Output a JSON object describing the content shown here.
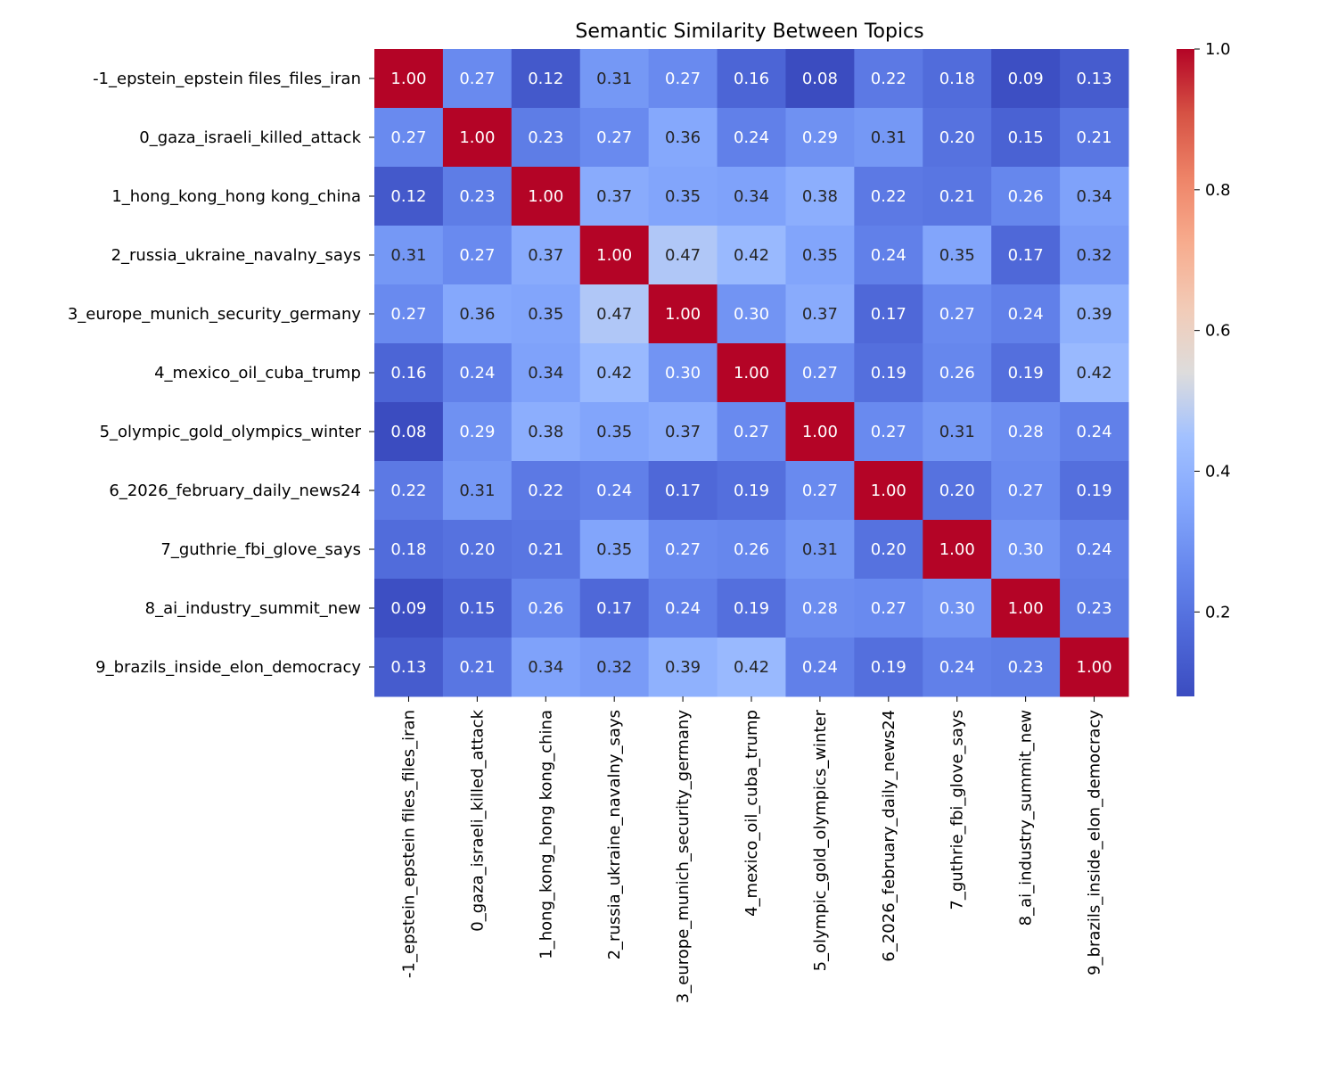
{
  "chart_data": {
    "type": "heatmap",
    "title": "Semantic Similarity Between Topics",
    "xlabel": "",
    "ylabel": "",
    "labels": [
      "-1_epstein_epstein files_files_iran",
      "0_gaza_israeli_killed_attack",
      "1_hong_kong_hong kong_china",
      "2_russia_ukraine_navalny_says",
      "3_europe_munich_security_germany",
      "4_mexico_oil_cuba_trump",
      "5_olympic_gold_olympics_winter",
      "6_2026_february_daily_news24",
      "7_guthrie_fbi_glove_says",
      "8_ai_industry_summit_new",
      "9_brazils_inside_elon_democracy"
    ],
    "values": [
      [
        1.0,
        0.27,
        0.12,
        0.31,
        0.27,
        0.16,
        0.08,
        0.22,
        0.18,
        0.09,
        0.13
      ],
      [
        0.27,
        1.0,
        0.23,
        0.27,
        0.36,
        0.24,
        0.29,
        0.31,
        0.2,
        0.15,
        0.21
      ],
      [
        0.12,
        0.23,
        1.0,
        0.37,
        0.35,
        0.34,
        0.38,
        0.22,
        0.21,
        0.26,
        0.34
      ],
      [
        0.31,
        0.27,
        0.37,
        1.0,
        0.47,
        0.42,
        0.35,
        0.24,
        0.35,
        0.17,
        0.32
      ],
      [
        0.27,
        0.36,
        0.35,
        0.47,
        1.0,
        0.3,
        0.37,
        0.17,
        0.27,
        0.24,
        0.39
      ],
      [
        0.16,
        0.24,
        0.34,
        0.42,
        0.3,
        1.0,
        0.27,
        0.19,
        0.26,
        0.19,
        0.42
      ],
      [
        0.08,
        0.29,
        0.38,
        0.35,
        0.37,
        0.27,
        1.0,
        0.27,
        0.31,
        0.28,
        0.24
      ],
      [
        0.22,
        0.31,
        0.22,
        0.24,
        0.17,
        0.19,
        0.27,
        1.0,
        0.2,
        0.27,
        0.19
      ],
      [
        0.18,
        0.2,
        0.21,
        0.35,
        0.27,
        0.26,
        0.31,
        0.2,
        1.0,
        0.3,
        0.24
      ],
      [
        0.09,
        0.15,
        0.26,
        0.17,
        0.24,
        0.19,
        0.28,
        0.27,
        0.3,
        1.0,
        0.23
      ],
      [
        0.13,
        0.21,
        0.34,
        0.32,
        0.39,
        0.42,
        0.24,
        0.19,
        0.24,
        0.23,
        1.0
      ]
    ],
    "colormap": "coolwarm",
    "color_range": [
      0.08,
      1.0
    ],
    "colorbar_ticks": [
      0.2,
      0.4,
      0.6,
      0.8,
      1.0
    ],
    "annotation_format": "2 decimals",
    "grid": false
  }
}
